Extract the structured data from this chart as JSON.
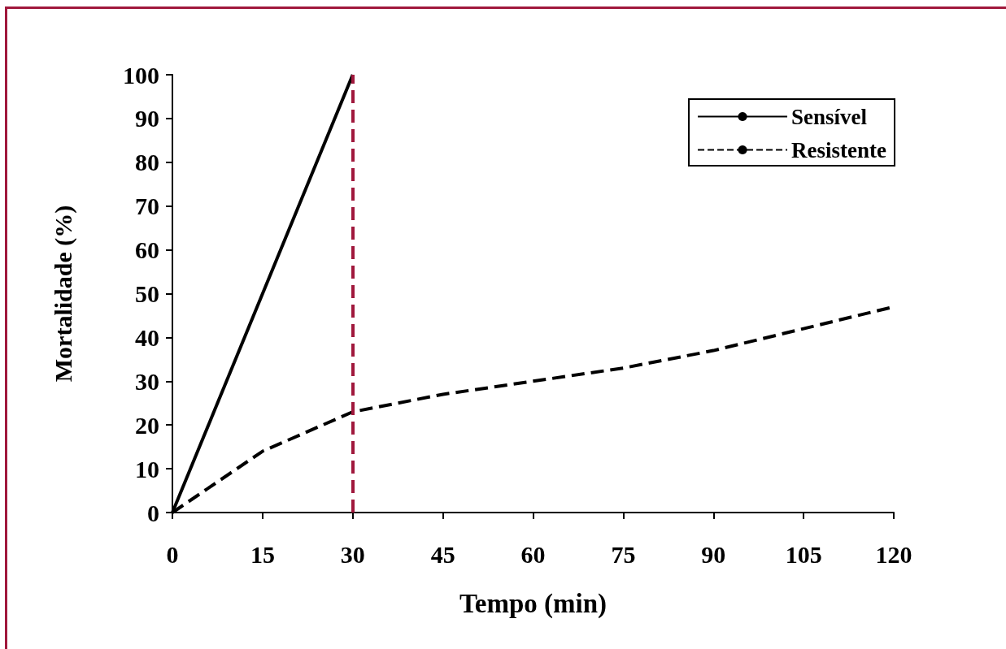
{
  "chart_data": {
    "type": "line",
    "xlabel": "Tempo (min)",
    "ylabel": "Mortalidade (%)",
    "xlim": [
      0,
      120
    ],
    "xticks": [
      0,
      15,
      30,
      45,
      60,
      75,
      90,
      105,
      120
    ],
    "ylim": [
      0,
      100
    ],
    "yticks": [
      0,
      10,
      20,
      30,
      40,
      50,
      60,
      70,
      80,
      90,
      100
    ],
    "grid": false,
    "legend": "top right",
    "marker": "none",
    "series": [
      {
        "name": "Sensível",
        "color": "#000000",
        "line_style": "solid",
        "x": [
          0,
          30
        ],
        "values": [
          0,
          100
        ]
      },
      {
        "name": "Resistente",
        "color": "#000000",
        "line_style": "dashed",
        "x": [
          0,
          15,
          30,
          45,
          60,
          75,
          90,
          105,
          120
        ],
        "values": [
          0,
          14,
          23,
          27,
          30,
          33,
          37,
          42,
          47
        ]
      }
    ],
    "ref_lines": [
      {
        "axis": "x",
        "value": 30,
        "color": "#a0183c",
        "line_style": "dashed"
      }
    ]
  }
}
